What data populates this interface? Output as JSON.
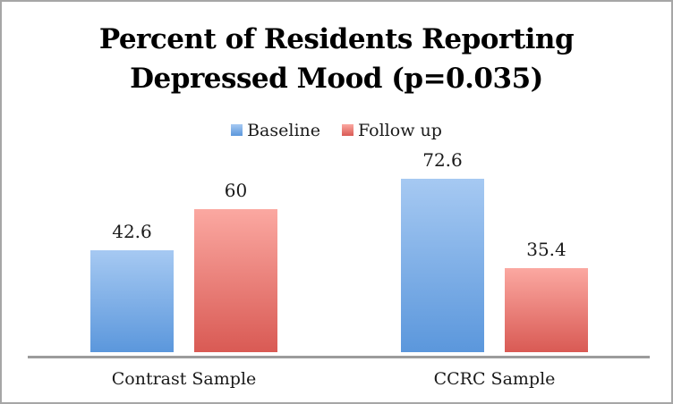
{
  "window": {
    "background": "#ffffff",
    "border_color": "#a6a6a6"
  },
  "title": {
    "line1": "Percent of Residents Reporting",
    "line2": "Depressed Mood (p=0.035)"
  },
  "chart_data": {
    "type": "bar",
    "title": "Percent of Residents Reporting Depressed Mood (p=0.035)",
    "categories": [
      "Contrast Sample",
      "CCRC Sample"
    ],
    "series": [
      {
        "name": "Baseline",
        "values": [
          42.6,
          72.6
        ],
        "labels": [
          "42.6",
          "72.6"
        ],
        "color_top": "#a6c9f2",
        "color_bottom": "#5b97dc"
      },
      {
        "name": "Follow up",
        "values": [
          60,
          35.4
        ],
        "labels": [
          "60",
          "35.4"
        ],
        "color_top": "#fba8a1",
        "color_bottom": "#d95a54"
      }
    ],
    "xlabel": "",
    "ylabel": "",
    "ylim": [
      0,
      87
    ],
    "grid": false,
    "y_axis_visible": false,
    "legend_position": "top-center",
    "axis_color": "#9c9c9c",
    "data_labels_shown": true
  }
}
